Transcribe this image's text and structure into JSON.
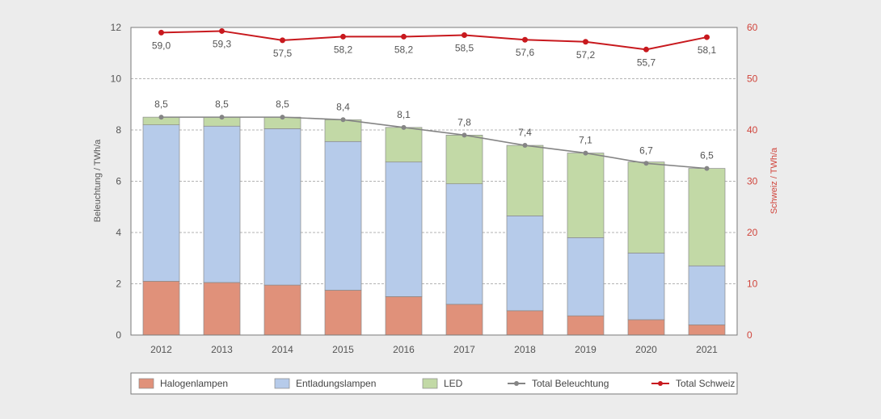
{
  "chart_data": {
    "type": "bar",
    "stacked": true,
    "categories": [
      "2012",
      "2013",
      "2014",
      "2015",
      "2016",
      "2017",
      "2018",
      "2019",
      "2020",
      "2021"
    ],
    "series": [
      {
        "name": "Halogenlampen",
        "type": "bar",
        "axis": "left",
        "color": "#e0917a",
        "values": [
          2.1,
          2.05,
          1.95,
          1.75,
          1.5,
          1.2,
          0.95,
          0.75,
          0.6,
          0.4
        ]
      },
      {
        "name": "Entladungslampen",
        "type": "bar",
        "axis": "left",
        "color": "#b6cbea",
        "values": [
          6.1,
          6.1,
          6.1,
          5.8,
          5.25,
          4.7,
          3.7,
          3.05,
          2.6,
          2.3
        ]
      },
      {
        "name": "LED",
        "type": "bar",
        "axis": "left",
        "color": "#c2d9a6",
        "values": [
          0.3,
          0.35,
          0.45,
          0.85,
          1.35,
          1.9,
          2.75,
          3.3,
          3.55,
          3.8
        ]
      },
      {
        "name": "Total Beleuchtung",
        "type": "line",
        "axis": "left",
        "color": "#858585",
        "values": [
          8.5,
          8.5,
          8.5,
          8.4,
          8.1,
          7.8,
          7.4,
          7.1,
          6.7,
          6.5
        ],
        "labels": [
          "8,5",
          "8,5",
          "8,5",
          "8,4",
          "8,1",
          "7,8",
          "7,4",
          "7,1",
          "6,7",
          "6,5"
        ]
      },
      {
        "name": "Total Schweiz",
        "type": "line",
        "axis": "right",
        "color": "#c8191e",
        "values": [
          59.0,
          59.3,
          57.5,
          58.2,
          58.2,
          58.5,
          57.6,
          57.2,
          55.7,
          58.1
        ],
        "labels": [
          "59,0",
          "59,3",
          "57,5",
          "58,2",
          "58,2",
          "58,5",
          "57,6",
          "57,2",
          "55,7",
          "58,1"
        ]
      }
    ],
    "ylabel": "Beleuchtung / TWh/a",
    "y2label": "Schweiz / TWh/a",
    "ylim": [
      0,
      12
    ],
    "y2lim": [
      0,
      60
    ],
    "yticks": [
      "0",
      "2",
      "4",
      "6",
      "8",
      "10",
      "12"
    ],
    "y2ticks": [
      "0",
      "10",
      "20",
      "30",
      "40",
      "50",
      "60"
    ],
    "grid": "horizontal dashed",
    "legend_position": "bottom",
    "axis_colors": {
      "left": "#555555",
      "right": "#d0453c"
    }
  }
}
